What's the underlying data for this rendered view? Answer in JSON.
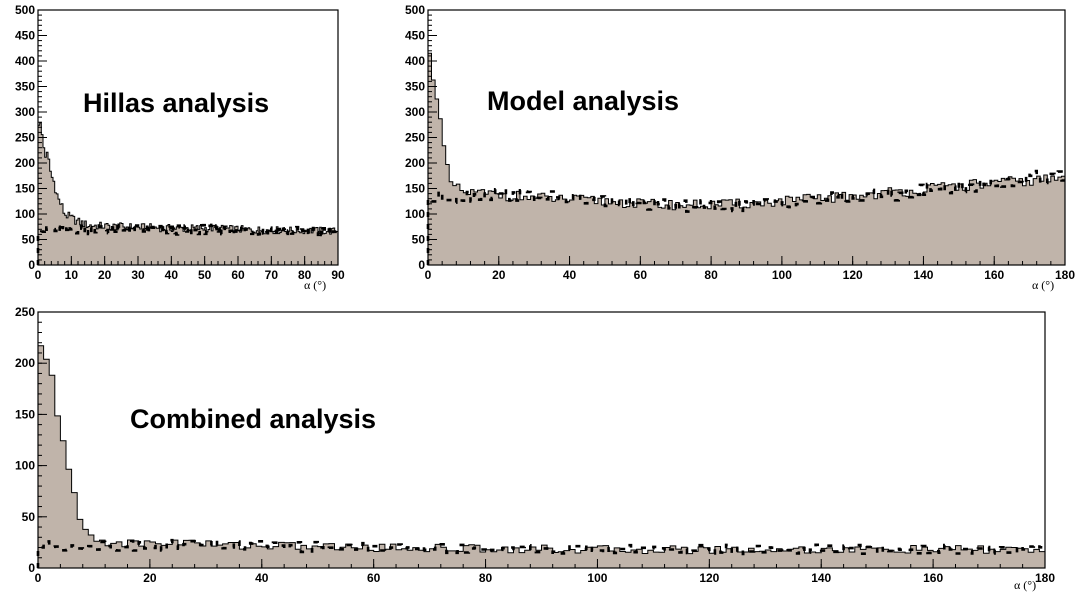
{
  "colors": {
    "fill": "#c0b4aa",
    "line": "#000000",
    "background": "#ffffff"
  },
  "chart_data": [
    {
      "type": "histogram",
      "title": "Hillas analysis",
      "xlabel": "α (°)",
      "ylabel": "",
      "xlim": [
        0,
        90
      ],
      "ylim": [
        0,
        500
      ],
      "xticks": [
        0,
        10,
        20,
        30,
        40,
        50,
        60,
        70,
        80,
        90
      ],
      "yticks": [
        0,
        50,
        100,
        150,
        200,
        250,
        300,
        350,
        400,
        450,
        500
      ],
      "bin_width": 0.5,
      "grid": false,
      "series": [
        {
          "style": "filled-step",
          "profile": [
            [
              0,
              290
            ],
            [
              1,
              265
            ],
            [
              2,
              220
            ],
            [
              3,
              210
            ],
            [
              4,
              175
            ],
            [
              5,
              160
            ],
            [
              6,
              130
            ],
            [
              7,
              118
            ],
            [
              8,
              100
            ],
            [
              10,
              92
            ],
            [
              12,
              85
            ],
            [
              15,
              78
            ],
            [
              20,
              76
            ],
            [
              30,
              74
            ],
            [
              40,
              72
            ],
            [
              50,
              72
            ],
            [
              60,
              70
            ],
            [
              70,
              68
            ],
            [
              80,
              68
            ],
            [
              90,
              66
            ]
          ]
        },
        {
          "style": "dashed-step",
          "profile": [
            [
              0,
              68
            ],
            [
              10,
              70
            ],
            [
              20,
              70
            ],
            [
              30,
              70
            ],
            [
              40,
              68
            ],
            [
              50,
              70
            ],
            [
              60,
              68
            ],
            [
              70,
              68
            ],
            [
              80,
              66
            ],
            [
              90,
              64
            ]
          ]
        }
      ]
    },
    {
      "type": "histogram",
      "title": "Model analysis",
      "xlabel": "α (°)",
      "ylabel": "",
      "xlim": [
        0,
        180
      ],
      "ylim": [
        0,
        500
      ],
      "xticks": [
        0,
        20,
        40,
        60,
        80,
        100,
        120,
        140,
        160,
        180
      ],
      "yticks": [
        0,
        50,
        100,
        150,
        200,
        250,
        300,
        350,
        400,
        450,
        500
      ],
      "bin_width": 1,
      "grid": false,
      "series": [
        {
          "style": "filled-step",
          "profile": [
            [
              0,
              410
            ],
            [
              1,
              400
            ],
            [
              2,
              360
            ],
            [
              3,
              310
            ],
            [
              4,
              250
            ],
            [
              5,
              200
            ],
            [
              6,
              170
            ],
            [
              7,
              155
            ],
            [
              8,
              150
            ],
            [
              10,
              142
            ],
            [
              20,
              138
            ],
            [
              30,
              132
            ],
            [
              40,
              128
            ],
            [
              50,
              125
            ],
            [
              60,
              120
            ],
            [
              70,
              118
            ],
            [
              80,
              118
            ],
            [
              90,
              120
            ],
            [
              100,
              125
            ],
            [
              110,
              130
            ],
            [
              120,
              135
            ],
            [
              130,
              142
            ],
            [
              140,
              148
            ],
            [
              150,
              155
            ],
            [
              160,
              160
            ],
            [
              170,
              165
            ],
            [
              180,
              170
            ]
          ]
        },
        {
          "style": "dashed-step",
          "profile": [
            [
              0,
              130
            ],
            [
              10,
              135
            ],
            [
              20,
              140
            ],
            [
              30,
              135
            ],
            [
              40,
              130
            ],
            [
              50,
              125
            ],
            [
              60,
              120
            ],
            [
              70,
              115
            ],
            [
              80,
              115
            ],
            [
              90,
              118
            ],
            [
              100,
              122
            ],
            [
              110,
              128
            ],
            [
              120,
              132
            ],
            [
              130,
              138
            ],
            [
              140,
              145
            ],
            [
              150,
              152
            ],
            [
              160,
              160
            ],
            [
              170,
              170
            ],
            [
              180,
              180
            ]
          ]
        }
      ]
    },
    {
      "type": "histogram",
      "title": "Combined analysis",
      "xlabel": "α (°)",
      "ylabel": "",
      "xlim": [
        0,
        180
      ],
      "ylim": [
        0,
        250
      ],
      "xticks": [
        0,
        20,
        40,
        60,
        80,
        100,
        120,
        140,
        160,
        180
      ],
      "yticks": [
        0,
        50,
        100,
        150,
        200,
        250
      ],
      "bin_width": 1,
      "grid": false,
      "series": [
        {
          "style": "filled-step",
          "profile": [
            [
              0,
              218
            ],
            [
              1,
              205
            ],
            [
              2,
              188
            ],
            [
              3,
              175
            ],
            [
              4,
              140
            ],
            [
              5,
              110
            ],
            [
              6,
              80
            ],
            [
              7,
              55
            ],
            [
              8,
              42
            ],
            [
              9,
              32
            ],
            [
              10,
              28
            ],
            [
              12,
              26
            ],
            [
              15,
              24
            ],
            [
              20,
              24
            ],
            [
              26,
              26
            ],
            [
              30,
              23
            ],
            [
              40,
              22
            ],
            [
              60,
              20
            ],
            [
              80,
              19
            ],
            [
              100,
              18
            ],
            [
              120,
              18
            ],
            [
              140,
              18
            ],
            [
              160,
              18
            ],
            [
              180,
              18
            ]
          ]
        },
        {
          "style": "dashed-step",
          "profile": [
            [
              0,
              22
            ],
            [
              10,
              22
            ],
            [
              20,
              22
            ],
            [
              30,
              23
            ],
            [
              40,
              21
            ],
            [
              60,
              20
            ],
            [
              80,
              19
            ],
            [
              100,
              18
            ],
            [
              120,
              18
            ],
            [
              140,
              18
            ],
            [
              160,
              18
            ],
            [
              180,
              18
            ]
          ]
        }
      ]
    }
  ]
}
